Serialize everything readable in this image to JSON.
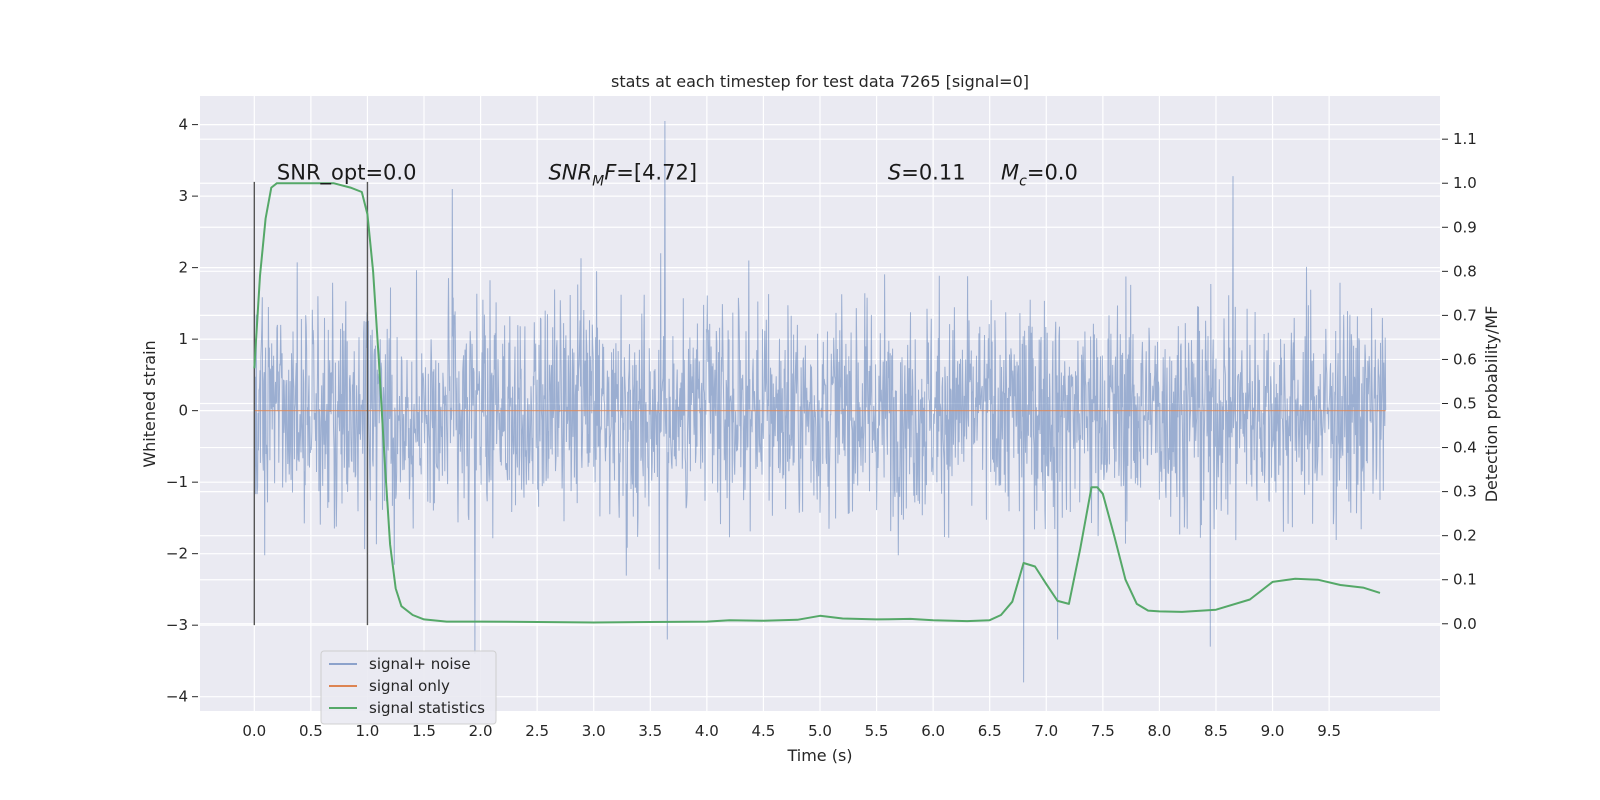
{
  "chart_data": {
    "type": "line",
    "title": "stats at each timestep for test data 7265 [signal=0]",
    "xlabel": "Time (s)",
    "ylabel_left": "Whitened strain",
    "ylabel_right": "Detection probability/MF",
    "xlim": [
      -0.48,
      10.48
    ],
    "ylim_left": [
      -4.2,
      4.4
    ],
    "ylim_right": [
      -0.198,
      1.198
    ],
    "xticks": [
      0.0,
      0.5,
      1.0,
      1.5,
      2.0,
      2.5,
      3.0,
      3.5,
      4.0,
      4.5,
      5.0,
      5.5,
      6.0,
      6.5,
      7.0,
      7.5,
      8.0,
      8.5,
      9.0,
      9.5
    ],
    "xtick_labels": [
      "0.0",
      "0.5",
      "1.0",
      "1.5",
      "2.0",
      "2.5",
      "3.0",
      "3.5",
      "4.0",
      "4.5",
      "5.0",
      "5.5",
      "6.0",
      "6.5",
      "7.0",
      "7.5",
      "8.0",
      "8.5",
      "9.0",
      "9.5"
    ],
    "yticks_left": [
      4,
      3,
      2,
      1,
      0,
      -1,
      -2,
      -3,
      -4
    ],
    "ytick_labels_left": [
      "4",
      "3",
      "2",
      "1",
      "0",
      "−1",
      "−2",
      "−3",
      "−4"
    ],
    "yticks_right": [
      1.1,
      1.0,
      0.9,
      0.8,
      0.7,
      0.6,
      0.5,
      0.4,
      0.3,
      0.2,
      0.1,
      0.0
    ],
    "ytick_labels_right": [
      "1.1",
      "1.0",
      "0.9",
      "0.8",
      "0.7",
      "0.6",
      "0.5",
      "0.4",
      "0.3",
      "0.2",
      "0.1",
      "0.0"
    ],
    "grid": true,
    "legend_position": "lower-left",
    "series": [
      {
        "name": "signal+ noise",
        "axis": "left",
        "color": "#4c72b0",
        "note": "dense noise trace sampled from 0.0 to 10.0 s",
        "envelope": {
          "x_range": [
            0.0,
            10.0
          ],
          "core_band": [
            -1.2,
            1.2
          ],
          "typical_peaks": [
            -2.3,
            2.6
          ]
        },
        "spikes": [
          {
            "x": 3.63,
            "y": 4.05
          },
          {
            "x": 8.65,
            "y": 3.28
          },
          {
            "x": 1.75,
            "y": 3.1
          },
          {
            "x": 3.65,
            "y": -3.2
          },
          {
            "x": 6.8,
            "y": -3.8
          },
          {
            "x": 7.1,
            "y": -3.2
          },
          {
            "x": 8.45,
            "y": -3.3
          },
          {
            "x": 1.95,
            "y": -3.4
          }
        ]
      },
      {
        "name": "signal only",
        "axis": "left",
        "color": "#dd8452",
        "x": [
          0.0,
          10.0
        ],
        "y": [
          0.0,
          0.0
        ]
      },
      {
        "name": "signal statistics",
        "axis": "right",
        "color": "#55a868",
        "x": [
          0.0,
          0.05,
          0.1,
          0.15,
          0.2,
          0.3,
          0.5,
          0.7,
          0.85,
          0.95,
          1.0,
          1.05,
          1.1,
          1.15,
          1.2,
          1.25,
          1.3,
          1.4,
          1.5,
          1.7,
          2.0,
          2.5,
          3.0,
          3.5,
          4.0,
          4.2,
          4.5,
          4.8,
          5.0,
          5.2,
          5.5,
          5.8,
          6.0,
          6.3,
          6.5,
          6.6,
          6.7,
          6.8,
          6.9,
          7.0,
          7.1,
          7.2,
          7.3,
          7.4,
          7.45,
          7.5,
          7.6,
          7.7,
          7.8,
          7.9,
          8.0,
          8.2,
          8.5,
          8.8,
          9.0,
          9.2,
          9.4,
          9.6,
          9.8,
          9.95
        ],
        "y": [
          0.58,
          0.79,
          0.92,
          0.99,
          1.0,
          1.0,
          1.0,
          1.0,
          0.99,
          0.98,
          0.93,
          0.8,
          0.6,
          0.38,
          0.18,
          0.08,
          0.04,
          0.02,
          0.01,
          0.005,
          0.005,
          0.004,
          0.003,
          0.004,
          0.005,
          0.008,
          0.007,
          0.009,
          0.018,
          0.012,
          0.01,
          0.011,
          0.008,
          0.006,
          0.008,
          0.02,
          0.05,
          0.138,
          0.13,
          0.09,
          0.052,
          0.045,
          0.17,
          0.31,
          0.31,
          0.295,
          0.2,
          0.1,
          0.045,
          0.03,
          0.028,
          0.027,
          0.032,
          0.055,
          0.095,
          0.102,
          0.1,
          0.088,
          0.082,
          0.07
        ]
      }
    ],
    "vertical_lines": [
      {
        "x": 0.0,
        "ymin": -3.0,
        "ymax": 3.2,
        "color": "#555555"
      },
      {
        "x": 1.0,
        "ymin": -3.0,
        "ymax": 3.2,
        "color": "#555555"
      }
    ],
    "annotations": [
      {
        "id": "snr_opt",
        "text": "SNR_opt=0.0",
        "x": 0.2,
        "y": 3.3
      },
      {
        "id": "snr_mf",
        "base": "SNR",
        "sub": "M",
        "rest": "F=[4.72]",
        "x": 2.6,
        "y": 3.3
      },
      {
        "id": "s_stat",
        "italic": "S",
        "rest": "=0.11",
        "x": 5.6,
        "y": 3.3
      },
      {
        "id": "mc",
        "italic": "M",
        "sub": "c",
        "rest": "=0.0",
        "x": 6.6,
        "y": 3.3
      }
    ]
  },
  "legend": {
    "items": [
      {
        "label": "signal+ noise",
        "color": "#4c72b0"
      },
      {
        "label": "signal only",
        "color": "#dd8452"
      },
      {
        "label": "signal statistics",
        "color": "#55a868"
      }
    ]
  },
  "colors": {
    "plot_background": "#eaeaf2",
    "grid": "#ffffff",
    "noise": "#4c72b0",
    "signal_only": "#dd8452",
    "statistics": "#55a868"
  }
}
